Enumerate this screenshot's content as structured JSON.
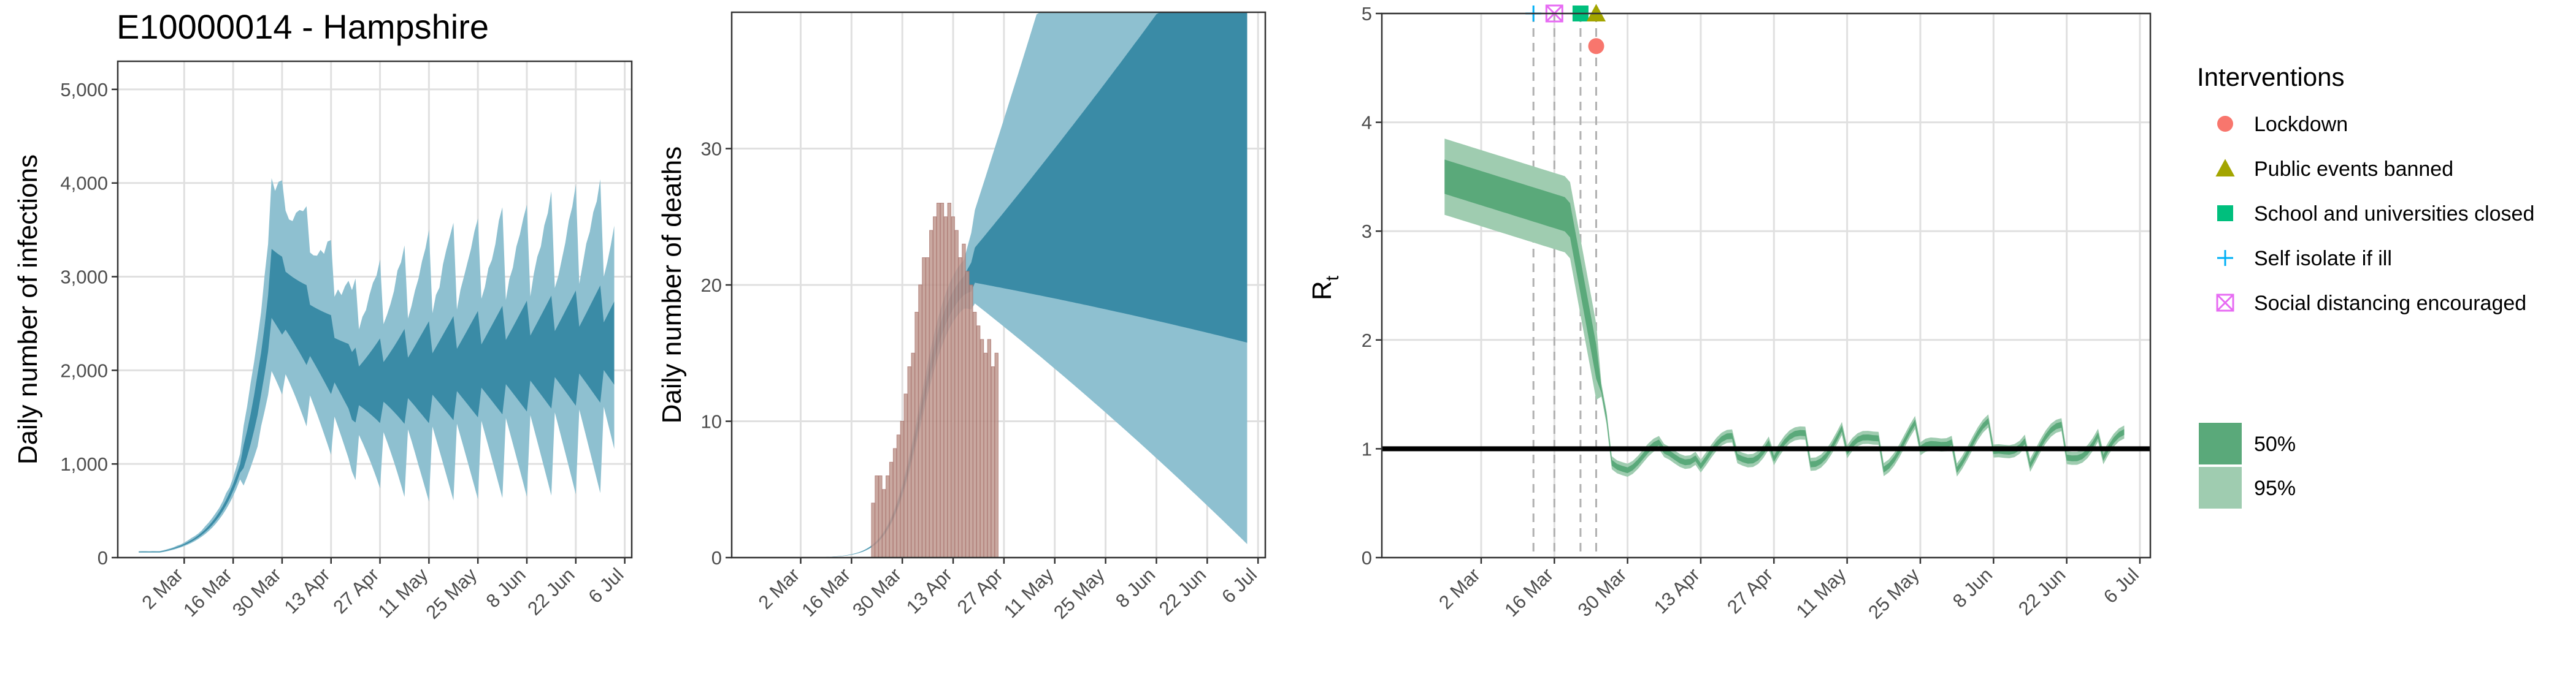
{
  "title": "E10000014 - Hampshire",
  "colors": {
    "infection_50": "#3a8ba6",
    "infection_95": "#8ec0d0",
    "observed_bar": "#c09990",
    "observed_bar_stroke": "#a8716a",
    "rt_50": "#5aa97a",
    "rt_95": "#9fccb0",
    "rt_line": "#5aa97a",
    "lockdown": "#f8766d",
    "public_events": "#a3a500",
    "schools": "#00bf7d",
    "self_isolate": "#00b0f6",
    "social_distancing": "#e76bf3"
  },
  "x_axis": {
    "tick_labels": [
      "2 Mar",
      "16 Mar",
      "30 Mar",
      "13 Apr",
      "27 Apr",
      "11 May",
      "25 May",
      "8 Jun",
      "22 Jun",
      "6 Jul"
    ],
    "tick_dates": [
      "2020-03-02",
      "2020-03-16",
      "2020-03-30",
      "2020-04-13",
      "2020-04-27",
      "2020-05-11",
      "2020-05-25",
      "2020-06-08",
      "2020-06-22",
      "2020-07-06"
    ],
    "xlim": [
      "2020-02-12",
      "2020-07-08"
    ]
  },
  "chart_data": [
    {
      "type": "area",
      "panel": "infections",
      "title": "E10000014 - Hampshire",
      "xlabel": "",
      "ylabel": "Daily number of infections",
      "ylim": [
        0,
        5300
      ],
      "y_tick_labels": [
        "0",
        "1,000",
        "2,000",
        "3,000",
        "4,000",
        "5,000"
      ],
      "y_tick_values": [
        0,
        1000,
        2000,
        3000,
        4000,
        5000
      ],
      "grid": true,
      "series_x": {
        "start": "2020-02-18",
        "end": "2020-07-03",
        "step_days": 1
      },
      "series": [
        {
          "name": "95%",
          "lower": [
            0
          ],
          "upper": [
            0
          ]
        },
        {
          "name": "50%",
          "lower": [
            0
          ],
          "upper": [
            0
          ]
        }
      ],
      "bars": {
        "start": "2020-03-22",
        "values": []
      }
    },
    {
      "type": "area",
      "panel": "deaths",
      "xlabel": "",
      "ylabel": "Daily number of deaths",
      "ylim": [
        0,
        40
      ],
      "y_tick_labels": [
        "0",
        "10",
        "20",
        "30"
      ],
      "y_tick_values": [
        0,
        10,
        20,
        30
      ],
      "grid": true,
      "series_x": {
        "start": "2020-02-18",
        "end": "2020-07-03",
        "step_days": 1
      },
      "series": [
        {
          "name": "95%",
          "lower": [
            0
          ],
          "upper": [
            0
          ]
        },
        {
          "name": "50%",
          "lower": [
            0
          ],
          "upper": [
            0
          ]
        }
      ],
      "bars": {
        "start": "2020-03-22",
        "values": [
          4,
          6,
          6,
          5,
          6,
          7,
          8,
          9,
          10,
          12,
          14,
          15,
          18,
          20,
          22,
          22,
          24,
          25,
          26,
          26,
          25,
          26,
          25,
          24,
          22,
          23,
          21,
          20,
          18,
          17,
          16,
          15,
          16,
          14,
          15
        ]
      }
    },
    {
      "type": "area",
      "panel": "rt",
      "xlabel": "",
      "ylabel": "R",
      "ylabel_subscript": "t",
      "ylim": [
        0,
        5
      ],
      "y_tick_labels": [
        "0",
        "1",
        "2",
        "3",
        "4",
        "5"
      ],
      "y_tick_values": [
        0,
        1,
        2,
        3,
        4,
        5
      ],
      "grid": true,
      "reference_line": 1,
      "series_x": {
        "start": "2020-02-24",
        "end": "2020-07-03",
        "step_days": 1
      },
      "series": [
        {
          "name": "95%",
          "lower": [
            0
          ],
          "upper": [
            0
          ]
        },
        {
          "name": "50%",
          "lower": [
            0
          ],
          "upper": [
            0
          ]
        }
      ],
      "interventions": [
        {
          "name": "Self isolate if ill",
          "date": "2020-03-12",
          "y": 5.0,
          "shape": "plus"
        },
        {
          "name": "Social distancing encouraged",
          "date": "2020-03-16",
          "y": 5.0,
          "shape": "boxx"
        },
        {
          "name": "School and universities closed",
          "date": "2020-03-21",
          "y": 5.0,
          "shape": "square"
        },
        {
          "name": "Public events banned",
          "date": "2020-03-24",
          "y": 5.0,
          "shape": "triangle"
        },
        {
          "name": "Lockdown",
          "date": "2020-03-24",
          "y": 4.7,
          "shape": "circle"
        }
      ]
    }
  ],
  "legend": {
    "title": "Interventions",
    "items": [
      {
        "label": "Lockdown",
        "shape": "circle",
        "color_key": "lockdown"
      },
      {
        "label": "Public events banned",
        "shape": "triangle",
        "color_key": "public_events"
      },
      {
        "label": "School and universities closed",
        "shape": "square",
        "color_key": "schools"
      },
      {
        "label": "Self isolate if ill",
        "shape": "plus",
        "color_key": "self_isolate"
      },
      {
        "label": "Social distancing encouraged",
        "shape": "boxx",
        "color_key": "social_distancing"
      }
    ],
    "bands": [
      {
        "label": "50%",
        "color_key": "rt_50"
      },
      {
        "label": "95%",
        "color_key": "rt_95"
      }
    ]
  }
}
